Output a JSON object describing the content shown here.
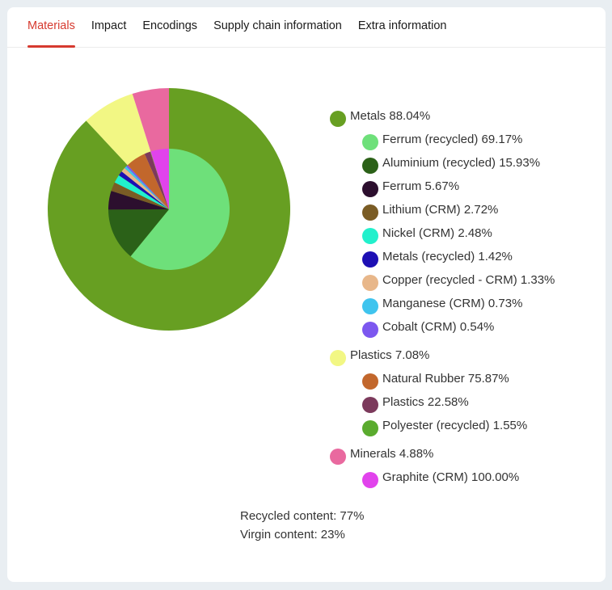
{
  "tabs": [
    {
      "label": "Materials"
    },
    {
      "label": "Impact"
    },
    {
      "label": "Encodings"
    },
    {
      "label": "Supply chain information"
    },
    {
      "label": "Extra information"
    }
  ],
  "chart_data": {
    "type": "pie",
    "subtype": "nested-donut",
    "groups": [
      {
        "label": "Metals 88.04%",
        "name": "Metals",
        "value": 88.04,
        "color": "#679f22",
        "items": [
          {
            "label": "Ferrum (recycled) 69.17%",
            "name": "Ferrum (recycled)",
            "value": 69.17,
            "color": "#6ee07a"
          },
          {
            "label": "Aluminium (recycled) 15.93%",
            "name": "Aluminium (recycled)",
            "value": 15.93,
            "color": "#2b6118"
          },
          {
            "label": "Ferrum 5.67%",
            "name": "Ferrum",
            "value": 5.67,
            "color": "#2c0f2e"
          },
          {
            "label": "Lithium (CRM) 2.72%",
            "name": "Lithium (CRM)",
            "value": 2.72,
            "color": "#7a5c25"
          },
          {
            "label": "Nickel (CRM) 2.48%",
            "name": "Nickel (CRM)",
            "value": 2.48,
            "color": "#22f0cc"
          },
          {
            "label": "Metals (recycled) 1.42%",
            "name": "Metals (recycled)",
            "value": 1.42,
            "color": "#1d0fb4"
          },
          {
            "label": "Copper (recycled - CRM) 1.33%",
            "name": "Copper (recycled - CRM)",
            "value": 1.33,
            "color": "#e8b78a"
          },
          {
            "label": "Manganese (CRM) 0.73%",
            "name": "Manganese (CRM)",
            "value": 0.73,
            "color": "#3fc4ee"
          },
          {
            "label": "Cobalt (CRM) 0.54%",
            "name": "Cobalt (CRM)",
            "value": 0.54,
            "color": "#7c57ef"
          }
        ]
      },
      {
        "label": "Plastics 7.08%",
        "name": "Plastics",
        "value": 7.08,
        "color": "#f2f784",
        "items": [
          {
            "label": "Natural Rubber 75.87%",
            "name": "Natural Rubber",
            "value": 75.87,
            "color": "#c2672c"
          },
          {
            "label": "Plastics 22.58%",
            "name": "Plastics",
            "value": 22.58,
            "color": "#7c3a5c"
          },
          {
            "label": "Polyester (recycled) 1.55%",
            "name": "Polyester (recycled)",
            "value": 1.55,
            "color": "#5aab2e"
          }
        ]
      },
      {
        "label": "Minerals 4.88%",
        "name": "Minerals",
        "value": 4.88,
        "color": "#e9699f",
        "items": [
          {
            "label": "Graphite (CRM) 100.00%",
            "name": "Graphite (CRM)",
            "value": 100.0,
            "color": "#e143ec"
          }
        ]
      }
    ]
  },
  "summary": {
    "recycled": "Recycled content: 77%",
    "virgin": "Virgin content: 23%"
  }
}
